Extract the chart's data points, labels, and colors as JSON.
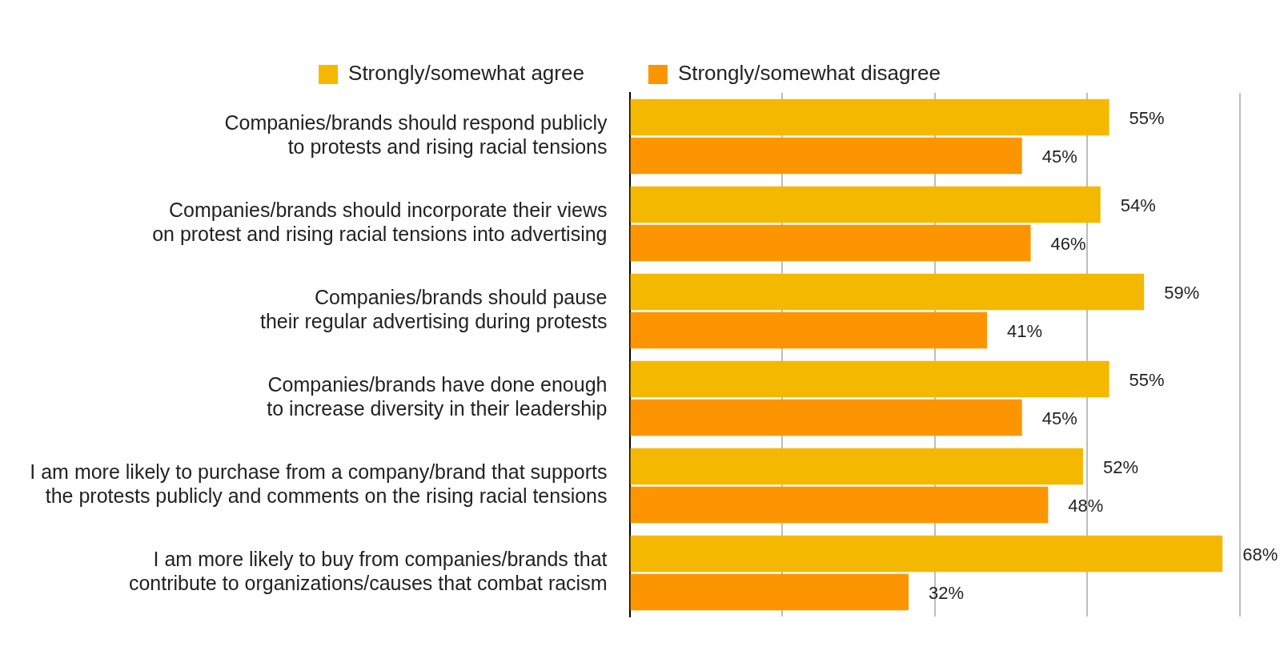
{
  "chart_data": {
    "type": "bar",
    "orientation": "horizontal",
    "categories": [
      "Companies/brands should respond publicly\nto protests and rising racial tensions",
      "Companies/brands should incorporate their views\non protest and rising racial tensions into advertising",
      "Companies/brands should pause\ntheir regular advertising during protests",
      "Companies/brands have done enough\nto increase diversity in their leadership",
      "I am more likely to purchase from a company/brand that supports\nthe protests publicly and comments on the rising racial tensions",
      "I am more likely to buy from companies/brands that\ncontribute to organizations/causes that combat racism"
    ],
    "series": [
      {
        "name": "Strongly/somewhat agree",
        "color": "#f5b800",
        "values": [
          55,
          54,
          59,
          55,
          52,
          68
        ],
        "value_labels": [
          "55%",
          "54%",
          "59%",
          "55%",
          "52%",
          "68%"
        ]
      },
      {
        "name": "Strongly/somewhat disagree",
        "color": "#fd9500",
        "values": [
          45,
          46,
          41,
          45,
          48,
          32
        ],
        "value_labels": [
          "45%",
          "46%",
          "41%",
          "45%",
          "48%",
          "32%"
        ]
      }
    ],
    "xlim": [
      0,
      70
    ],
    "xticks": [
      {
        "value": 0,
        "label": null
      },
      {
        "value": 17.5,
        "label": null
      },
      {
        "value": 35,
        "label": null
      },
      {
        "value": 52.5,
        "label": null
      },
      {
        "value": 70,
        "label": null
      }
    ],
    "grid": "x",
    "legend": "top",
    "tick_labels": "y"
  }
}
